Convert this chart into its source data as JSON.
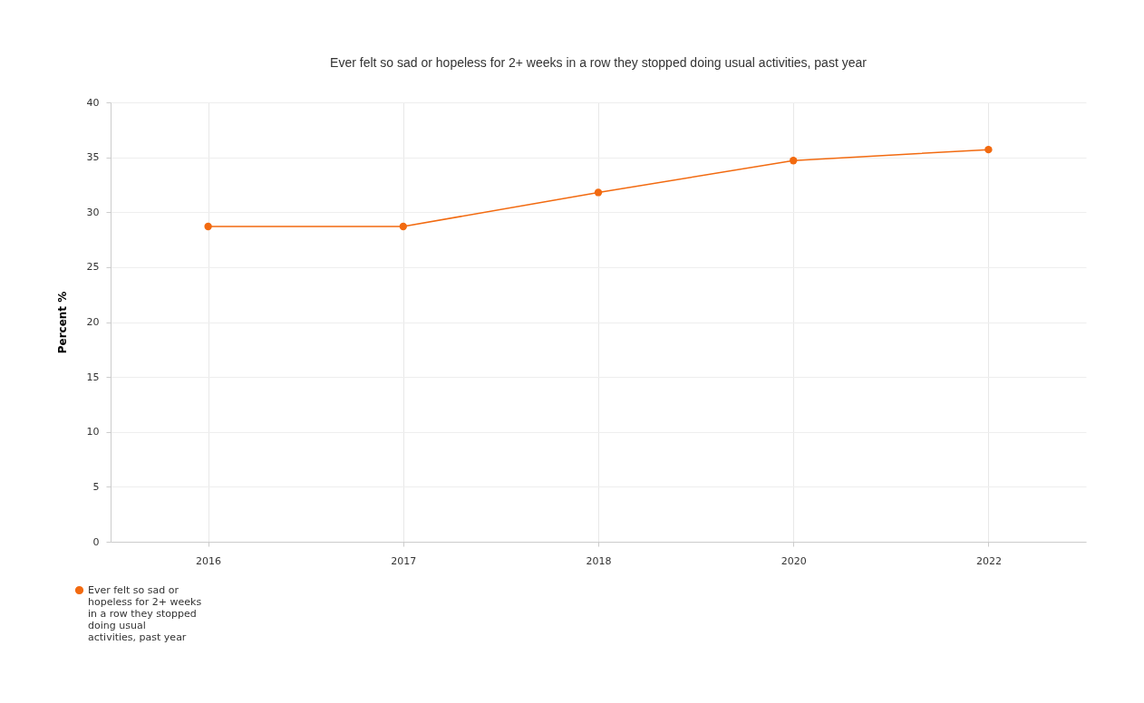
{
  "chart_data": {
    "type": "line",
    "title": "Ever felt so sad or hopeless for 2+ weeks in a row they stopped doing usual activities, past year",
    "ylabel": "Percent %",
    "categories": [
      "2016",
      "2017",
      "2018",
      "2020",
      "2022"
    ],
    "series": [
      {
        "name": "Ever felt so sad or hopeless for 2+ weeks in a row they stopped doing usual activities, past year",
        "color": "#f26a10",
        "values": [
          28.7,
          28.7,
          31.8,
          34.7,
          35.7
        ]
      }
    ],
    "ylim": [
      0,
      40
    ],
    "yticks": [
      0,
      5,
      10,
      15,
      20,
      25,
      30,
      35,
      40
    ],
    "grid": true,
    "legend": "bottom left",
    "marker": "circle",
    "line_style": "solid"
  }
}
